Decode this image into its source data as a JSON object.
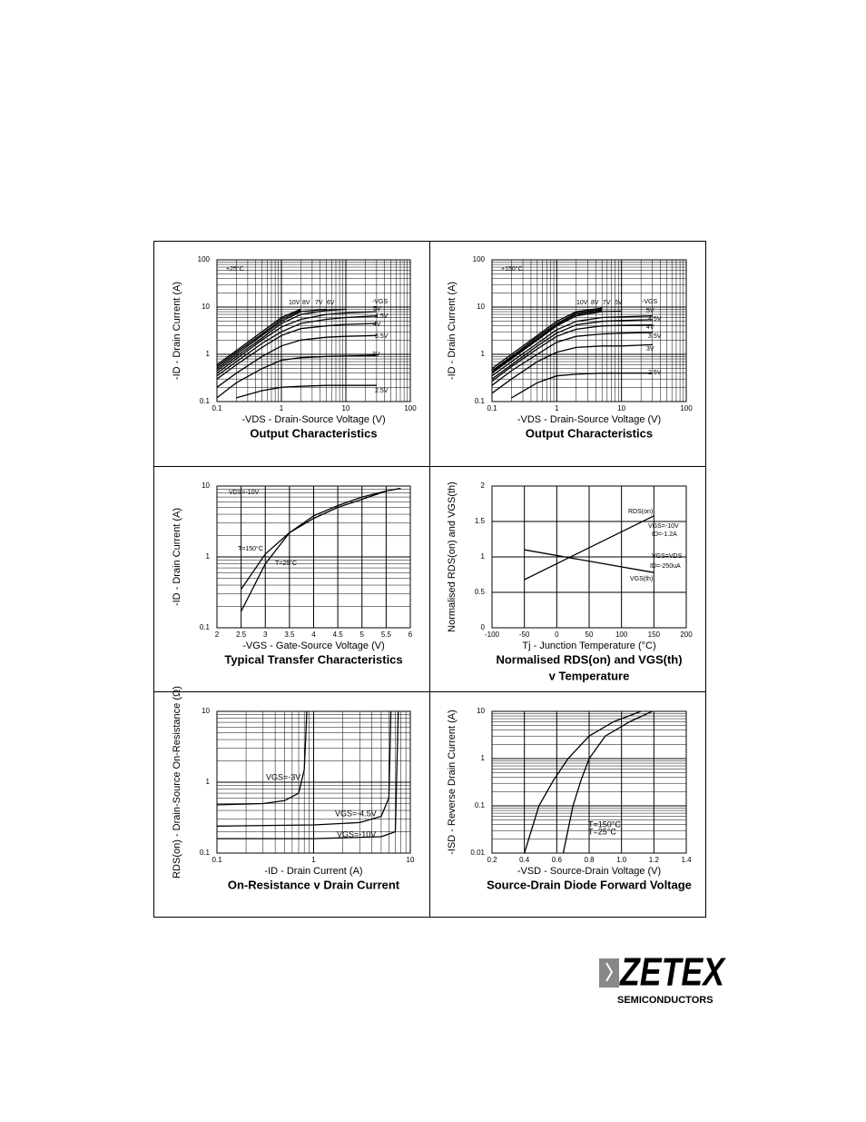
{
  "chart_data": [
    {
      "type": "line",
      "title": "Output Characteristics",
      "xlabel": "-VDS - Drain-Source Voltage (V)",
      "ylabel": "-ID - Drain Current (A)",
      "xscale": "log",
      "yscale": "log",
      "xlim": [
        0.1,
        100
      ],
      "ylim": [
        0.1,
        100
      ],
      "xticks": [
        0.1,
        1,
        10,
        100
      ],
      "yticks": [
        0.1,
        1,
        10,
        100
      ],
      "grid": true,
      "color": "#000000",
      "legend_title": "-VGS",
      "annotations": [
        "+25°C"
      ],
      "x": [
        0.1,
        0.2,
        0.5,
        1,
        2,
        5,
        10,
        30
      ],
      "series": [
        {
          "name": "10V",
          "values": [
            0.6,
            1.2,
            3,
            6,
            9,
            null,
            null,
            null
          ]
        },
        {
          "name": "8V",
          "values": [
            0.55,
            1.1,
            2.7,
            5.5,
            8.5,
            null,
            null,
            null
          ]
        },
        {
          "name": "7V",
          "values": [
            0.5,
            1,
            2.5,
            5,
            8,
            9,
            null,
            null
          ]
        },
        {
          "name": "6V",
          "values": [
            0.45,
            0.9,
            2.2,
            4.5,
            7,
            8.5,
            9,
            null
          ]
        },
        {
          "name": "5V",
          "values": [
            0.4,
            0.8,
            2,
            3.8,
            5.5,
            7,
            7.5,
            8
          ]
        },
        {
          "name": "4.5V",
          "values": [
            0.35,
            0.7,
            1.7,
            3,
            4.5,
            5.5,
            6,
            6.5
          ]
        },
        {
          "name": "4V",
          "values": [
            0.3,
            0.6,
            1.4,
            2.5,
            3.5,
            4,
            4.3,
            4.5
          ]
        },
        {
          "name": "3.5V",
          "values": [
            0.2,
            0.4,
            0.9,
            1.5,
            2,
            2.3,
            2.4,
            2.5
          ]
        },
        {
          "name": "3V",
          "values": [
            0.12,
            0.25,
            0.5,
            0.75,
            0.85,
            0.9,
            0.92,
            0.95
          ]
        },
        {
          "name": "2.5V",
          "values": [
            null,
            0.12,
            0.17,
            0.2,
            0.21,
            0.22,
            0.22,
            0.22
          ]
        }
      ]
    },
    {
      "type": "line",
      "title": "Output Characteristics",
      "xlabel": "-VDS - Drain-Source Voltage (V)",
      "ylabel": "-ID - Drain Current (A)",
      "xscale": "log",
      "yscale": "log",
      "xlim": [
        0.1,
        100
      ],
      "ylim": [
        0.1,
        100
      ],
      "xticks": [
        0.1,
        1,
        10,
        100
      ],
      "yticks": [
        0.1,
        1,
        10,
        100
      ],
      "grid": true,
      "color": "#000000",
      "legend_title": "-VGS",
      "annotations": [
        "+150°C"
      ],
      "x": [
        0.1,
        0.2,
        0.5,
        1,
        2,
        5,
        10,
        30
      ],
      "series": [
        {
          "name": "10V",
          "values": [
            0.5,
            1,
            2.5,
            5,
            8,
            9.5,
            null,
            null
          ]
        },
        {
          "name": "8V",
          "values": [
            0.45,
            0.9,
            2.3,
            4.5,
            7.5,
            9,
            null,
            null
          ]
        },
        {
          "name": "7V",
          "values": [
            0.42,
            0.85,
            2.1,
            4.2,
            7,
            8.5,
            null,
            null
          ]
        },
        {
          "name": "6V",
          "values": [
            0.4,
            0.8,
            2,
            4,
            6.5,
            8,
            8.2,
            null
          ]
        },
        {
          "name": "5V",
          "values": [
            0.35,
            0.7,
            1.7,
            3.3,
            5,
            6,
            6.2,
            6.5
          ]
        },
        {
          "name": "4.5V",
          "values": [
            0.3,
            0.6,
            1.5,
            2.8,
            4.2,
            5,
            5.2,
            5.4
          ]
        },
        {
          "name": "4V",
          "values": [
            0.27,
            0.55,
            1.3,
            2.4,
            3.4,
            4,
            4.1,
            4.2
          ]
        },
        {
          "name": "3.5V",
          "values": [
            0.22,
            0.45,
            1,
            1.8,
            2.4,
            2.7,
            2.8,
            2.9
          ]
        },
        {
          "name": "3V",
          "values": [
            0.15,
            0.3,
            0.7,
            1.1,
            1.4,
            1.5,
            1.5,
            1.6
          ]
        },
        {
          "name": "2.5V",
          "values": [
            null,
            0.12,
            0.25,
            0.35,
            0.38,
            0.4,
            0.4,
            0.4
          ]
        }
      ]
    },
    {
      "type": "line",
      "title": "Typical Transfer Characteristics",
      "xlabel": "-VGS - Gate-Source Voltage (V)",
      "ylabel": "-ID - Drain Current (A)",
      "xscale": "linear",
      "yscale": "log",
      "xlim": [
        2,
        6
      ],
      "ylim": [
        0.1,
        10
      ],
      "xticks": [
        2,
        2.5,
        3,
        3.5,
        4,
        4.5,
        5,
        5.5,
        6
      ],
      "yticks": [
        0.1,
        1,
        10
      ],
      "grid": true,
      "color": "#000000",
      "annotations": [
        "VDS=-10V"
      ],
      "x": [
        2.5,
        3,
        3.5,
        4,
        4.5,
        5,
        5.5,
        5.8
      ],
      "series": [
        {
          "name": "T=150°C",
          "values": [
            0.35,
            1.1,
            2.2,
            3.5,
            5,
            6.5,
            8.5,
            null
          ]
        },
        {
          "name": "T=25°C",
          "values": [
            0.17,
            0.8,
            2.2,
            3.8,
            5.3,
            7,
            8.5,
            9.3
          ]
        }
      ]
    },
    {
      "type": "line",
      "title": "Normalised RDS(on) and VGS(th)",
      "subtitle": "v Temperature",
      "xlabel": "Tj - Junction Temperature (°C)",
      "ylabel": "Normalised RDS(on) and VGS(th)",
      "xscale": "linear",
      "yscale": "linear",
      "xlim": [
        -100,
        200
      ],
      "ylim": [
        0,
        2
      ],
      "xticks": [
        -100,
        -50,
        0,
        50,
        100,
        150,
        200
      ],
      "yticks": [
        0,
        0.5,
        1,
        1.5,
        2
      ],
      "grid": true,
      "color": "#000000",
      "annotations": [
        "VGS=-10V",
        "ID=-1.2A",
        "VGS=VDS",
        "ID=-250uA"
      ],
      "x": [
        -50,
        150
      ],
      "series": [
        {
          "name": "RDS(on)",
          "values": [
            0.68,
            1.58
          ]
        },
        {
          "name": "VGS(th)",
          "values": [
            1.1,
            0.78
          ]
        }
      ]
    },
    {
      "type": "line",
      "title": "On-Resistance v Drain Current",
      "xlabel": "-ID - Drain Current (A)",
      "ylabel": "RDS(on) - Drain-Source On-Resistance (Ω)",
      "xscale": "log",
      "yscale": "log",
      "xlim": [
        0.1,
        10
      ],
      "ylim": [
        0.1,
        10
      ],
      "xticks": [
        0.1,
        1,
        10
      ],
      "yticks": [
        0.1,
        1,
        10
      ],
      "grid": true,
      "color": "#000000",
      "series": [
        {
          "name": "VGS=-3V",
          "x": [
            0.1,
            0.3,
            0.5,
            0.7,
            0.8,
            0.85
          ],
          "values": [
            0.48,
            0.5,
            0.55,
            0.7,
            1.5,
            10
          ]
        },
        {
          "name": "VGS=-4.5V",
          "x": [
            0.1,
            1,
            3,
            5,
            6,
            6.3
          ],
          "values": [
            0.24,
            0.25,
            0.27,
            0.33,
            0.6,
            10
          ]
        },
        {
          "name": "VGS=-10V",
          "x": [
            0.1,
            1,
            5,
            7,
            7.5
          ],
          "values": [
            0.16,
            0.16,
            0.17,
            0.2,
            10
          ]
        }
      ]
    },
    {
      "type": "line",
      "title": "Source-Drain Diode Forward Voltage",
      "xlabel": "-VSD - Source-Drain Voltage (V)",
      "ylabel": "-ISD - Reverse Drain Current (A)",
      "xscale": "linear",
      "yscale": "log",
      "xlim": [
        0.2,
        1.4
      ],
      "ylim": [
        0.01,
        10
      ],
      "xticks": [
        0.2,
        0.4,
        0.6,
        0.8,
        {
          "value": 1,
          "label": "1.0"
        },
        1.2,
        1.4
      ],
      "yticks": [
        0.01,
        0.1,
        1,
        10
      ],
      "grid": true,
      "color": "#000000",
      "series": [
        {
          "name": "T=150°C",
          "x": [
            0.4,
            0.49,
            0.58,
            0.67,
            0.8,
            0.95,
            1.12
          ],
          "values": [
            0.01,
            0.1,
            0.35,
            1,
            3,
            6,
            10
          ]
        },
        {
          "name": "T=25°C",
          "x": [
            0.64,
            0.7,
            0.75,
            0.8,
            0.9,
            1.05,
            1.19
          ],
          "values": [
            0.01,
            0.1,
            0.35,
            1,
            3,
            6,
            10
          ]
        }
      ]
    }
  ],
  "logo": {
    "name": "ZETEX",
    "subtitle": "SEMICONDUCTORS"
  }
}
